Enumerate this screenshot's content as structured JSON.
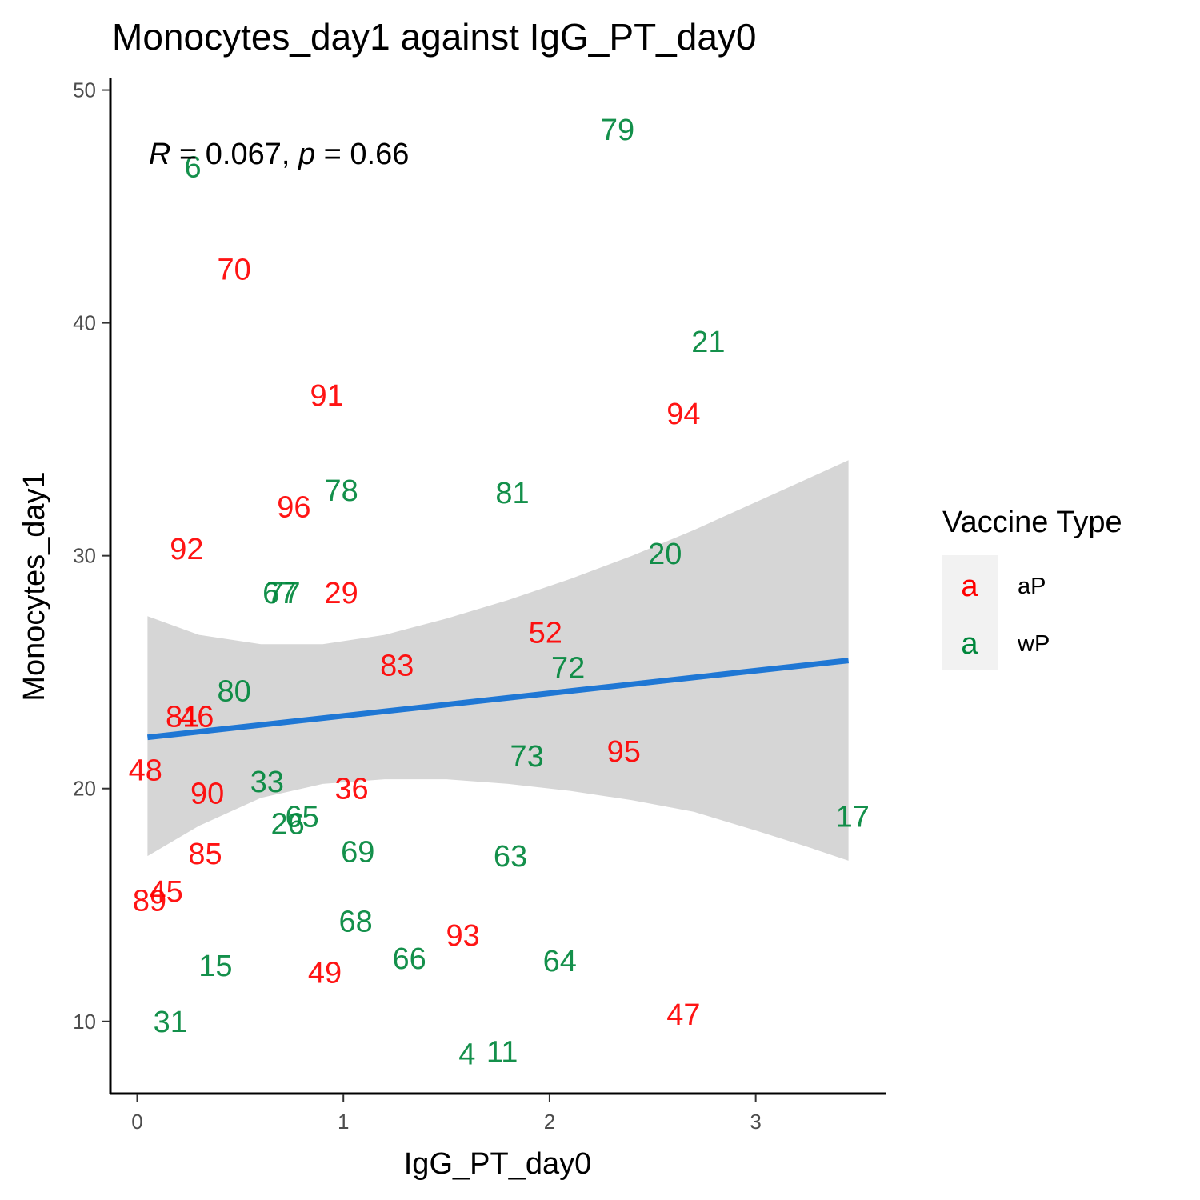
{
  "chart_data": {
    "type": "scatter",
    "title": "Monocytes_day1 against IgG_PT_day0",
    "xlabel": "IgG_PT_day0",
    "ylabel": "Monocytes_day1",
    "xlim": [
      -0.13,
      3.63
    ],
    "ylim": [
      6.9,
      50.5
    ],
    "x_ticks": [
      0,
      1,
      2,
      3
    ],
    "y_ticks": [
      10,
      20,
      30,
      40,
      50
    ],
    "grid": false,
    "annotation": {
      "r_label": "R",
      "r_value": " = 0.067, ",
      "p_label": "p",
      "p_value": " = 0.66"
    },
    "colors": {
      "aP": "#ff0000",
      "wP": "#00873c",
      "line": "#1f77d4",
      "band": "#d6d6d6"
    },
    "legend": {
      "title": "Vaccine Type",
      "placement": "right",
      "key_glyph": "a",
      "entries": [
        {
          "name": "aP",
          "color": "#ff0000"
        },
        {
          "name": "wP",
          "color": "#00873c"
        }
      ]
    },
    "trend_line": {
      "x": [
        0.05,
        3.45
      ],
      "y": [
        22.2,
        25.5
      ]
    },
    "confidence_band": {
      "x": [
        0.05,
        0.3,
        0.6,
        0.9,
        1.2,
        1.5,
        1.8,
        2.1,
        2.4,
        2.7,
        3.0,
        3.25,
        3.45
      ],
      "upper": [
        27.4,
        26.6,
        26.2,
        26.2,
        26.6,
        27.3,
        28.1,
        29.0,
        30.0,
        31.1,
        32.3,
        33.3,
        34.1
      ],
      "lower": [
        17.1,
        18.4,
        19.6,
        20.2,
        20.4,
        20.4,
        20.2,
        19.9,
        19.5,
        19.0,
        18.2,
        17.5,
        16.9
      ]
    },
    "series": [
      {
        "name": "aP",
        "points": [
          {
            "label": "70",
            "x": 0.47,
            "y": 42.3
          },
          {
            "label": "91",
            "x": 0.92,
            "y": 36.9
          },
          {
            "label": "94",
            "x": 2.65,
            "y": 36.1
          },
          {
            "label": "96",
            "x": 0.76,
            "y": 32.1
          },
          {
            "label": "92",
            "x": 0.24,
            "y": 30.3
          },
          {
            "label": "29",
            "x": 0.99,
            "y": 28.4
          },
          {
            "label": "52",
            "x": 1.98,
            "y": 26.7
          },
          {
            "label": "83",
            "x": 1.26,
            "y": 25.3
          },
          {
            "label": "81",
            "x": 0.22,
            "y": 23.1
          },
          {
            "label": "46",
            "x": 0.29,
            "y": 23.1
          },
          {
            "label": "95",
            "x": 2.36,
            "y": 21.6
          },
          {
            "label": "48",
            "x": 0.04,
            "y": 20.8
          },
          {
            "label": "90",
            "x": 0.34,
            "y": 19.8
          },
          {
            "label": "36",
            "x": 1.04,
            "y": 20.0
          },
          {
            "label": "85",
            "x": 0.33,
            "y": 17.2
          },
          {
            "label": "89",
            "x": 0.06,
            "y": 15.2
          },
          {
            "label": "45",
            "x": 0.14,
            "y": 15.6
          },
          {
            "label": "93",
            "x": 1.58,
            "y": 13.7
          },
          {
            "label": "49",
            "x": 0.91,
            "y": 12.1
          },
          {
            "label": "47",
            "x": 2.65,
            "y": 10.3
          }
        ]
      },
      {
        "name": "wP",
        "points": [
          {
            "label": "79",
            "x": 2.33,
            "y": 48.3
          },
          {
            "label": "6",
            "x": 0.27,
            "y": 46.7
          },
          {
            "label": "21",
            "x": 2.77,
            "y": 39.2
          },
          {
            "label": "78",
            "x": 0.99,
            "y": 32.8
          },
          {
            "label": "81",
            "x": 1.82,
            "y": 32.7
          },
          {
            "label": "20",
            "x": 2.56,
            "y": 30.1
          },
          {
            "label": "67",
            "x": 0.69,
            "y": 28.4
          },
          {
            "label": "77",
            "x": 0.71,
            "y": 28.4
          },
          {
            "label": "72",
            "x": 2.09,
            "y": 25.2
          },
          {
            "label": "80",
            "x": 0.47,
            "y": 24.2
          },
          {
            "label": "73",
            "x": 1.89,
            "y": 21.4
          },
          {
            "label": "33",
            "x": 0.63,
            "y": 20.3
          },
          {
            "label": "17",
            "x": 3.47,
            "y": 18.8
          },
          {
            "label": "26",
            "x": 0.73,
            "y": 18.5
          },
          {
            "label": "65",
            "x": 0.8,
            "y": 18.8
          },
          {
            "label": "69",
            "x": 1.07,
            "y": 17.3
          },
          {
            "label": "63",
            "x": 1.81,
            "y": 17.1
          },
          {
            "label": "68",
            "x": 1.06,
            "y": 14.3
          },
          {
            "label": "66",
            "x": 1.32,
            "y": 12.7
          },
          {
            "label": "64",
            "x": 2.05,
            "y": 12.6
          },
          {
            "label": "15",
            "x": 0.38,
            "y": 12.4
          },
          {
            "label": "31",
            "x": 0.16,
            "y": 10.0
          },
          {
            "label": "4",
            "x": 1.6,
            "y": 8.6
          },
          {
            "label": "11",
            "x": 1.77,
            "y": 8.7
          }
        ]
      }
    ]
  }
}
